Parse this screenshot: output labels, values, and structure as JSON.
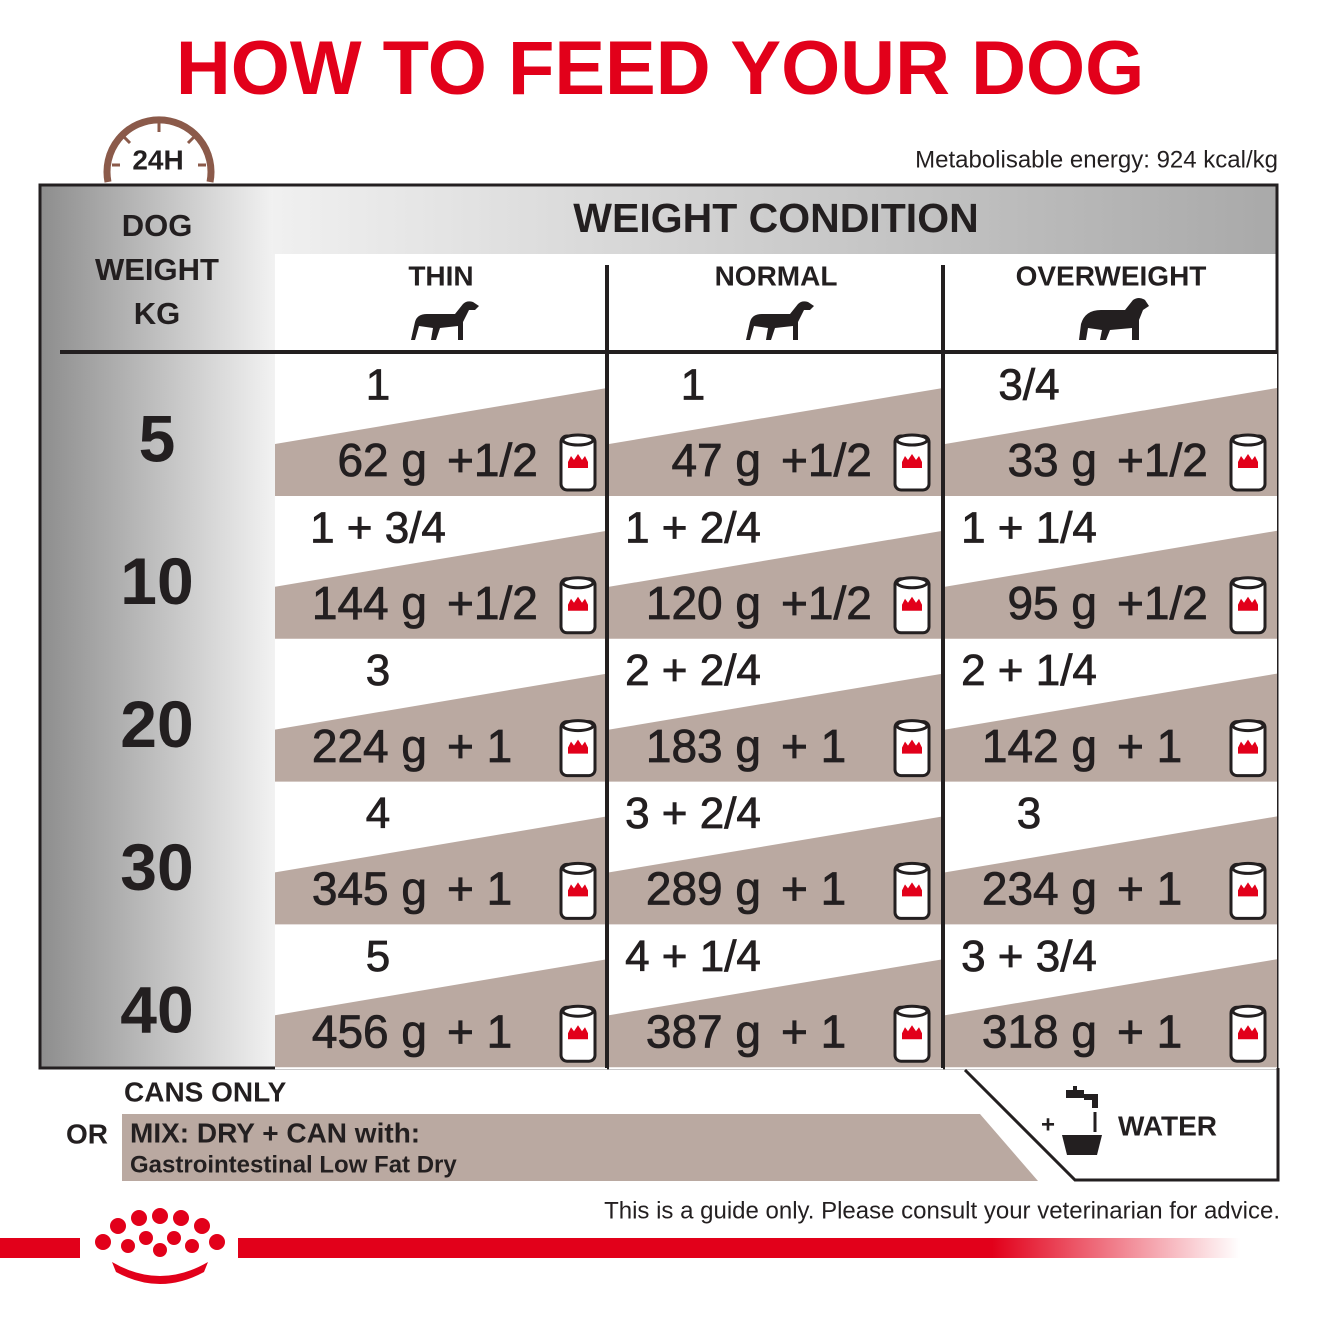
{
  "title": "HOW TO FEED YOUR DOG",
  "badge": "24H",
  "energy": "Metabolisable energy: 924 kcal/kg",
  "table": {
    "weight_header": [
      "DOG",
      "WEIGHT",
      "KG"
    ],
    "condition_header": "WEIGHT CONDITION",
    "columns": [
      "THIN",
      "NORMAL",
      "OVERWEIGHT"
    ],
    "rows": [
      {
        "weight": "5",
        "cells": [
          {
            "cans": "1",
            "dry": "62 g",
            "extra": "+1/2"
          },
          {
            "cans": "1",
            "dry": "47 g",
            "extra": "+1/2"
          },
          {
            "cans": "3/4",
            "dry": "33 g",
            "extra": "+1/2"
          }
        ]
      },
      {
        "weight": "10",
        "cells": [
          {
            "cans": "1 + 3/4",
            "dry": "144 g",
            "extra": "+1/2"
          },
          {
            "cans": "1 + 2/4",
            "dry": "120 g",
            "extra": "+1/2"
          },
          {
            "cans": "1 + 1/4",
            "dry": "95 g",
            "extra": "+1/2"
          }
        ]
      },
      {
        "weight": "20",
        "cells": [
          {
            "cans": "3",
            "dry": "224 g",
            "extra": "+ 1"
          },
          {
            "cans": "2 + 2/4",
            "dry": "183 g",
            "extra": "+ 1"
          },
          {
            "cans": "2 + 1/4",
            "dry": "142 g",
            "extra": "+ 1"
          }
        ]
      },
      {
        "weight": "30",
        "cells": [
          {
            "cans": "4",
            "dry": "345 g",
            "extra": "+ 1"
          },
          {
            "cans": "3 + 2/4",
            "dry": "289 g",
            "extra": "+ 1"
          },
          {
            "cans": "3",
            "dry": "234 g",
            "extra": "+ 1"
          }
        ]
      },
      {
        "weight": "40",
        "cells": [
          {
            "cans": "5",
            "dry": "456 g",
            "extra": "+ 1"
          },
          {
            "cans": "4 + 1/4",
            "dry": "387 g",
            "extra": "+ 1"
          },
          {
            "cans": "3 + 3/4",
            "dry": "318 g",
            "extra": "+ 1"
          }
        ]
      }
    ]
  },
  "legend": {
    "cans_only": "CANS ONLY",
    "or": "OR",
    "mix": "MIX: DRY + CAN with:",
    "product": "Gastrointestinal Low Fat Dry",
    "plus": "+",
    "water": "WATER"
  },
  "disclaimer": "This is a guide only. Please consult your veterinarian for advice."
}
